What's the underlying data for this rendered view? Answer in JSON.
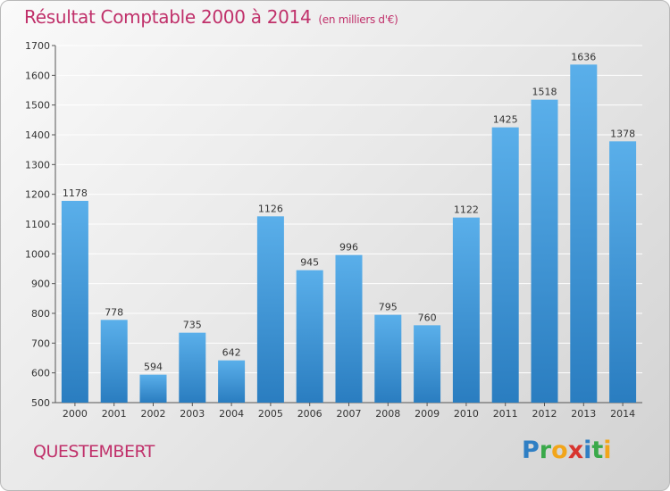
{
  "header": {
    "title": "Résultat Comptable 2000 à 2014",
    "subtitle": "(en milliers d'€)"
  },
  "footer": {
    "town": "QUESTEMBERT",
    "logo": [
      "P",
      "r",
      "o",
      "x",
      "i",
      "t",
      "i"
    ]
  },
  "colors": {
    "title": "#c0306a",
    "bar_top": "#5aafea",
    "bar_bottom": "#2a7dc0"
  },
  "chart_data": {
    "type": "bar",
    "title": "Résultat Comptable 2000 à 2014",
    "subtitle": "(en milliers d'€)",
    "xlabel": "",
    "ylabel": "",
    "categories": [
      "2000",
      "2001",
      "2002",
      "2003",
      "2004",
      "2005",
      "2006",
      "2007",
      "2008",
      "2009",
      "2010",
      "2011",
      "2012",
      "2013",
      "2014"
    ],
    "values": [
      1178,
      778,
      594,
      735,
      642,
      1126,
      945,
      996,
      795,
      760,
      1122,
      1425,
      1518,
      1636,
      1378
    ],
    "ylim": [
      500,
      1700
    ],
    "yticks": [
      500,
      600,
      700,
      800,
      900,
      1000,
      1100,
      1200,
      1300,
      1400,
      1500,
      1600,
      1700
    ],
    "grid": true,
    "legend": "none"
  }
}
